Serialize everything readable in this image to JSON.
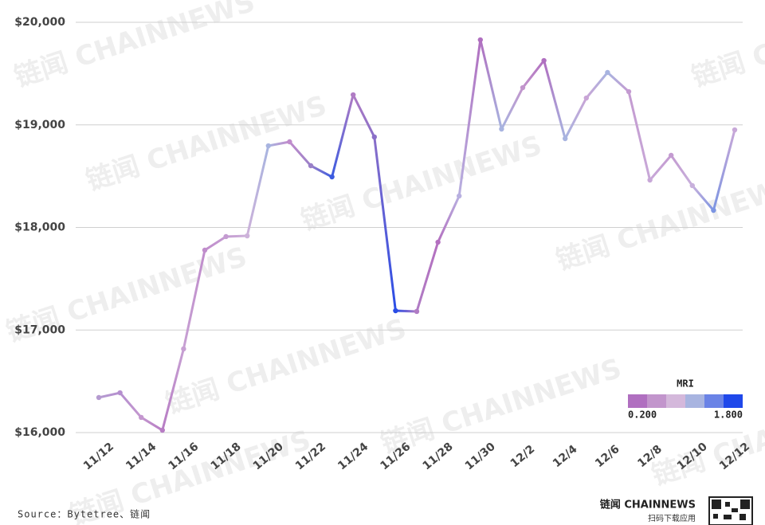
{
  "chart_data": {
    "type": "line",
    "categories": [
      "11/12",
      null,
      "11/14",
      null,
      "11/16",
      null,
      "11/18",
      null,
      "11/20",
      null,
      "11/22",
      null,
      "11/24",
      null,
      "11/26",
      null,
      "11/28",
      null,
      "11/30",
      null,
      "12/2",
      null,
      "12/4",
      null,
      "12/6",
      null,
      "12/8",
      null,
      "12/10",
      null,
      "12/12"
    ],
    "values": [
      16342,
      16388,
      16148,
      16023,
      16816,
      17779,
      17911,
      17918,
      18796,
      18835,
      18602,
      18493,
      19293,
      18882,
      17188,
      17181,
      17856,
      18307,
      19829,
      18959,
      19363,
      19627,
      18866,
      19262,
      19511,
      19324,
      18462,
      18703,
      18408,
      18167,
      18951
    ],
    "point_colors": [
      "#b59bd0",
      "#b58fcf",
      "#c497cf",
      "#b77cc4",
      "#c7a0d3",
      "#c08dcc",
      "#c49bd1",
      "#cdb2da",
      "#a8b4e0",
      "#c08ccc",
      "#9a80c8",
      "#3b5be0",
      "#b07cc4",
      "#8a6fc8",
      "#2a4de6",
      "#b07cc4",
      "#b470c0",
      "#b8b0e0",
      "#b06fc0",
      "#a8b4e0",
      "#c295cc",
      "#b06fc0",
      "#a8b4e0",
      "#c9a5d6",
      "#a8b4e0",
      "#c49bd1",
      "#c8a8d8",
      "#c49bd1",
      "#c8b0dc",
      "#7c95e2",
      "#c8a8d8"
    ],
    "ylim": [
      16000,
      20000
    ],
    "yticks": [
      {
        "value": 16000,
        "label": "$16,000"
      },
      {
        "value": 17000,
        "label": "$17,000"
      },
      {
        "value": 18000,
        "label": "$18,000"
      },
      {
        "value": 19000,
        "label": "$19,000"
      },
      {
        "value": 20000,
        "label": "$20,000"
      }
    ],
    "grid": true,
    "legend": {
      "title": "MRI",
      "colors": [
        "#b06fc0",
        "#c295cc",
        "#d4b8db",
        "#a8b4e0",
        "#6a83e6",
        "#1f48ea"
      ],
      "labels": [
        "0.200",
        "1.800"
      ]
    },
    "source": "Source：Bytetree、链闻",
    "brand": "链闻 CHAINNEWS",
    "brand_sub": "扫码下载应用",
    "watermark": "链闻 CHAINNEWS"
  }
}
